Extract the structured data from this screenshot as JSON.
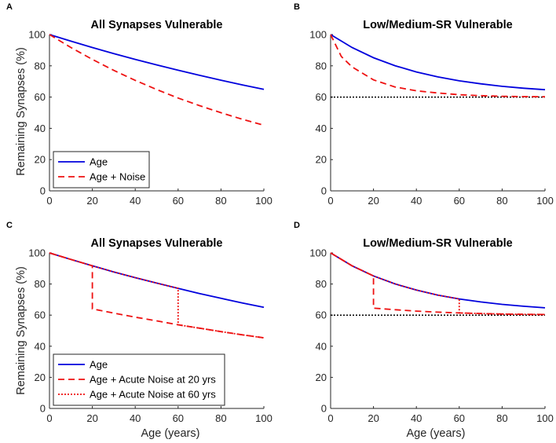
{
  "figure": {
    "ylabel": "Remaining Synapses (%)",
    "xlabel": "Age (years)"
  },
  "colors": {
    "blue": "#0000dd",
    "red": "#ee1111",
    "purple": "#7a2a9a",
    "black": "#000000"
  },
  "chart_data": [
    {
      "panel": "A",
      "type": "line",
      "title": "All Synapses Vulnerable",
      "xlim": [
        0,
        100
      ],
      "ylim": [
        0,
        100
      ],
      "xticks": [
        0,
        20,
        40,
        60,
        80,
        100
      ],
      "yticks": [
        0,
        20,
        40,
        60,
        80,
        100
      ],
      "ylabel": "Remaining Synapses (%)",
      "xlabel": "",
      "legend": {
        "position": "bottom-left",
        "entries": [
          "Age",
          "Age + Noise"
        ]
      },
      "series": [
        {
          "name": "Age",
          "style": "solid",
          "color": "blue",
          "x": [
            0,
            10,
            20,
            30,
            40,
            50,
            60,
            70,
            80,
            90,
            100
          ],
          "y": [
            100,
            95.8,
            91.7,
            87.8,
            84.1,
            80.6,
            77.2,
            73.9,
            70.8,
            67.8,
            65.0
          ]
        },
        {
          "name": "Age + Noise",
          "style": "dashed",
          "color": "red",
          "x": [
            0,
            10,
            20,
            30,
            40,
            50,
            60,
            70,
            80,
            90,
            100
          ],
          "y": [
            100,
            91.7,
            84.1,
            77.1,
            70.7,
            64.8,
            59.4,
            54.5,
            50.0,
            45.8,
            42.0
          ]
        }
      ],
      "hlines": []
    },
    {
      "panel": "B",
      "type": "line",
      "title": "Low/Medium-SR Vulnerable",
      "xlim": [
        0,
        100
      ],
      "ylim": [
        0,
        100
      ],
      "xticks": [
        0,
        20,
        40,
        60,
        80,
        100
      ],
      "yticks": [
        0,
        20,
        40,
        60,
        80,
        100
      ],
      "ylabel": "",
      "xlabel": "",
      "legend": null,
      "series": [
        {
          "name": "Age",
          "style": "solid",
          "color": "blue",
          "x": [
            0,
            10,
            20,
            30,
            40,
            50,
            60,
            70,
            80,
            90,
            100
          ],
          "y": [
            100,
            91.7,
            85.2,
            80.1,
            76.1,
            72.9,
            70.4,
            68.5,
            66.9,
            65.7,
            64.7
          ]
        },
        {
          "name": "Age + Noise",
          "style": "dashed",
          "color": "red",
          "x": [
            0,
            5,
            10,
            20,
            30,
            40,
            50,
            60,
            70,
            80,
            90,
            100
          ],
          "y": [
            100,
            86.0,
            79.3,
            71.0,
            66.5,
            64.0,
            62.6,
            61.5,
            60.9,
            60.5,
            60.3,
            60.2
          ]
        }
      ],
      "hlines": [
        {
          "y": 60,
          "style": "dotted",
          "color": "black"
        }
      ]
    },
    {
      "panel": "C",
      "type": "line",
      "title": "All Synapses Vulnerable",
      "xlim": [
        0,
        100
      ],
      "ylim": [
        0,
        100
      ],
      "xticks": [
        0,
        20,
        40,
        60,
        80,
        100
      ],
      "yticks": [
        0,
        20,
        40,
        60,
        80,
        100
      ],
      "ylabel": "Remaining Synapses (%)",
      "xlabel": "Age (years)",
      "legend": {
        "position": "bottom-left",
        "entries": [
          "Age",
          "Age + Acute Noise at 20 yrs",
          "Age + Acute Noise at 60 yrs"
        ]
      },
      "series": [
        {
          "name": "Age",
          "style": "solid",
          "color": "blue",
          "x": [
            0,
            10,
            20,
            30,
            40,
            50,
            60,
            70,
            80,
            90,
            100
          ],
          "y": [
            100,
            95.8,
            91.7,
            87.8,
            84.1,
            80.6,
            77.2,
            73.9,
            70.8,
            67.8,
            65.0
          ]
        },
        {
          "name": "Age + Acute Noise at 20 yrs",
          "style": "dashed",
          "color": "red",
          "x": [
            0,
            10,
            20,
            20,
            30,
            40,
            50,
            60,
            70,
            80,
            90,
            100
          ],
          "y": [
            100,
            95.8,
            91.7,
            64.0,
            61.3,
            58.7,
            56.3,
            53.8,
            51.6,
            49.4,
            47.3,
            45.4
          ]
        },
        {
          "name": "Age + Acute Noise at 60 yrs",
          "style": "dotted",
          "color": "red",
          "x": [
            0,
            10,
            20,
            30,
            40,
            50,
            60,
            60,
            70,
            80,
            90,
            100
          ],
          "y": [
            100,
            95.8,
            91.7,
            87.8,
            84.1,
            80.6,
            77.2,
            53.8,
            51.6,
            49.4,
            47.3,
            45.4
          ]
        }
      ],
      "hlines": []
    },
    {
      "panel": "D",
      "type": "line",
      "title": "Low/Medium-SR Vulnerable",
      "xlim": [
        0,
        100
      ],
      "ylim": [
        0,
        100
      ],
      "xticks": [
        0,
        20,
        40,
        60,
        80,
        100
      ],
      "yticks": [
        0,
        20,
        40,
        60,
        80,
        100
      ],
      "ylabel": "",
      "xlabel": "Age (years)",
      "legend": null,
      "series": [
        {
          "name": "Age",
          "style": "solid",
          "color": "blue",
          "x": [
            0,
            10,
            20,
            30,
            40,
            50,
            60,
            70,
            80,
            90,
            100
          ],
          "y": [
            100,
            91.7,
            85.2,
            80.1,
            76.1,
            72.9,
            70.4,
            68.5,
            66.9,
            65.7,
            64.7
          ]
        },
        {
          "name": "Age + Acute Noise at 20 yrs",
          "style": "dashed",
          "color": "red",
          "x": [
            0,
            10,
            20,
            20,
            30,
            40,
            50,
            60,
            70,
            80,
            90,
            100
          ],
          "y": [
            100,
            91.7,
            85.2,
            64.5,
            63.5,
            62.6,
            61.9,
            61.4,
            61.0,
            60.7,
            60.5,
            60.4
          ]
        },
        {
          "name": "Age + Acute Noise at 60 yrs",
          "style": "dotted",
          "color": "red",
          "x": [
            0,
            10,
            20,
            30,
            40,
            50,
            60,
            60,
            70,
            80,
            90,
            100
          ],
          "y": [
            100,
            91.7,
            85.2,
            80.1,
            76.1,
            72.9,
            70.4,
            61.4,
            61.0,
            60.7,
            60.5,
            60.4
          ]
        }
      ],
      "hlines": [
        {
          "y": 60,
          "style": "dotted",
          "color": "black"
        }
      ]
    }
  ]
}
